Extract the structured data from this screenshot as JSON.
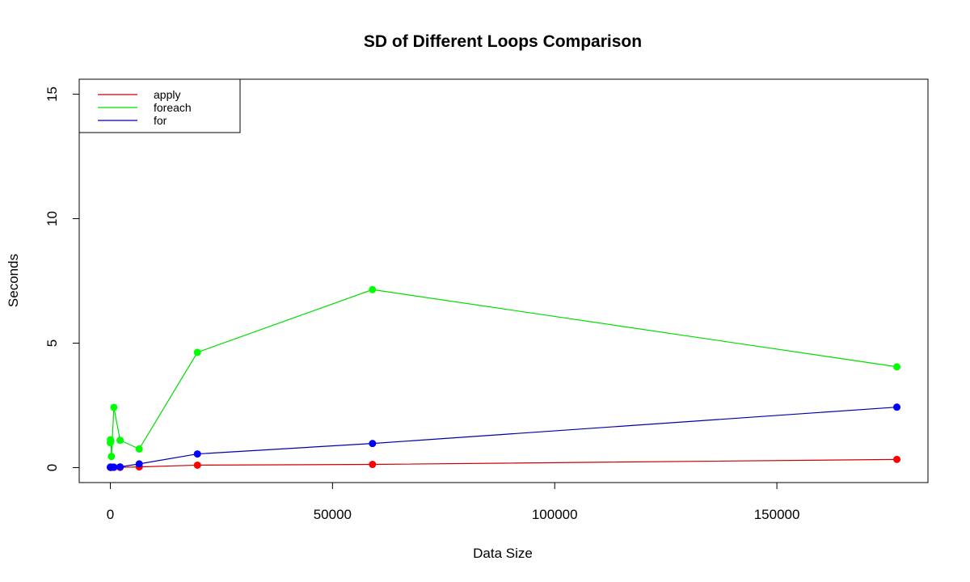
{
  "chart_data": {
    "type": "line",
    "title": "SD of Different Loops Comparison",
    "xlabel": "Data Size",
    "ylabel": "Seconds",
    "xlim": [
      -7000,
      184000
    ],
    "ylim": [
      -0.6,
      15.6
    ],
    "xticks": [
      0,
      50000,
      100000,
      150000
    ],
    "yticks": [
      0,
      5,
      10,
      15
    ],
    "xtick_labels": [
      "0",
      "50000",
      "100000",
      "150000"
    ],
    "ytick_labels": [
      "0",
      "5",
      "10",
      "15"
    ],
    "grid": false,
    "legend_position": "top-left",
    "series": [
      {
        "name": "apply",
        "color": "#ff0000",
        "line_color": "#cc0000",
        "points": [
          [
            10,
            0.01
          ],
          [
            30,
            0.01
          ],
          [
            100,
            0.01
          ],
          [
            250,
            0.01
          ],
          [
            800,
            0.01
          ],
          [
            2200,
            0.01
          ],
          [
            6500,
            0.03
          ],
          [
            19600,
            0.1
          ],
          [
            59000,
            0.13
          ],
          [
            177000,
            0.33
          ]
        ]
      },
      {
        "name": "foreach",
        "color": "#00ff00",
        "line_color": "#00dd00",
        "points": [
          [
            10,
            1.0
          ],
          [
            30,
            1.12
          ],
          [
            100,
            1.05
          ],
          [
            250,
            0.45
          ],
          [
            800,
            2.42
          ],
          [
            2200,
            1.1
          ],
          [
            6500,
            0.75
          ],
          [
            19600,
            4.63
          ],
          [
            59000,
            7.15
          ],
          [
            177000,
            4.05
          ]
        ]
      },
      {
        "name": "for",
        "color": "#0000ff",
        "line_color": "#0000aa",
        "points": [
          [
            10,
            0.02
          ],
          [
            30,
            0.02
          ],
          [
            100,
            0.02
          ],
          [
            250,
            0.02
          ],
          [
            800,
            0.02
          ],
          [
            2200,
            0.03
          ],
          [
            6500,
            0.15
          ],
          [
            19600,
            0.55
          ],
          [
            59000,
            0.97
          ],
          [
            177000,
            2.43
          ]
        ]
      }
    ]
  }
}
